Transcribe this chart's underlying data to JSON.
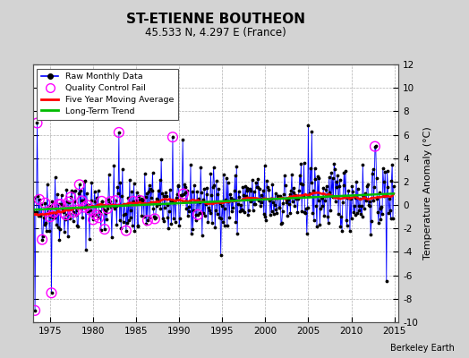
{
  "title": "ST-ETIENNE BOUTHEON",
  "subtitle": "45.533 N, 4.297 E (France)",
  "ylabel": "Temperature Anomaly (°C)",
  "watermark": "Berkeley Earth",
  "ylim": [
    -10,
    12
  ],
  "yticks": [
    -10,
    -8,
    -6,
    -4,
    -2,
    0,
    2,
    4,
    6,
    8,
    10,
    12
  ],
  "xlim": [
    1973.0,
    2015.5
  ],
  "xticks": [
    1975,
    1980,
    1985,
    1990,
    1995,
    2000,
    2005,
    2010,
    2015
  ],
  "bg_color": "#d3d3d3",
  "plot_bg_color": "#ffffff",
  "grid_color": "#b0b0b0",
  "raw_line_color": "#0000ff",
  "raw_dot_color": "#000000",
  "qc_fail_color": "#ff00ff",
  "moving_avg_color": "#ff0000",
  "trend_color": "#00bb00",
  "seed": 42,
  "n_months": 504,
  "start_year": 1973.0
}
